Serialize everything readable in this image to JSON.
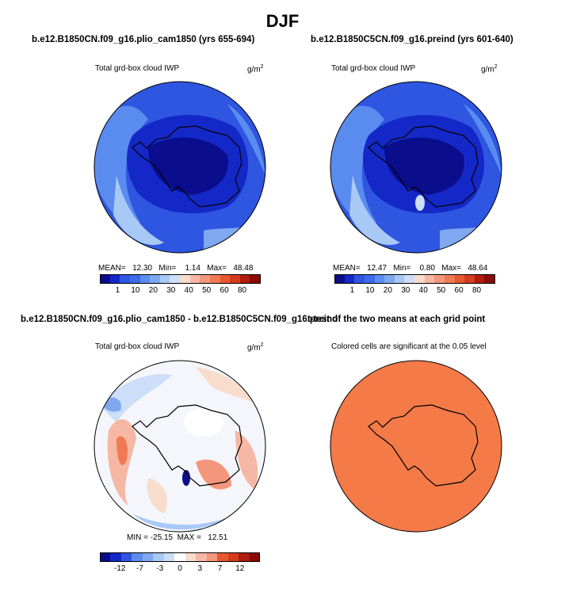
{
  "figure": {
    "title": "DJF",
    "panels": [
      {
        "title": "b.e12.B1850CN.f09_g16.plio_cam1850 (yrs 655-694)",
        "subtitle": "Total grd-box cloud IWP",
        "units": "g/m",
        "units_sup": "2",
        "stats": "MEAN=   12.30   Min=    1.14   Max=   48.48"
      },
      {
        "title": "b.e12.B1850C5CN.f09_g16.preind (yrs 601-640)",
        "subtitle": "Total grd-box cloud IWP",
        "units": "g/m",
        "units_sup": "2",
        "stats": "MEAN=   12.47   Min=    0.80   Max=   48.64"
      },
      {
        "title": "b.e12.B1850CN.f09_g16.plio_cam1850 - b.e12.B1850C5CN.f09_g16.preind",
        "subtitle": "Total grd-box cloud IWP",
        "units": "g/m",
        "units_sup": "2",
        "stats": "MIN = -25.15  MAX =   12.51"
      },
      {
        "title": "t-test of the two means at each grid point",
        "subtitle": "Colored cells are significant at the 0.05 level"
      }
    ],
    "colorbar_main": {
      "labels": [
        "1",
        "10",
        "20",
        "30",
        "40",
        "50",
        "60",
        "80"
      ],
      "colors": [
        "#0a0d8c",
        "#1428c8",
        "#2e56e0",
        "#3c6ae8",
        "#5a8cf0",
        "#7fa8f0",
        "#a8c8f6",
        "#ccdef8",
        "#f8dccc",
        "#f6b8a4",
        "#f4967c",
        "#f07a54",
        "#e8582e",
        "#d63a1c",
        "#b01c0e",
        "#8a0a06"
      ]
    },
    "colorbar_diff": {
      "labels": [
        "-12",
        "-7",
        "-3",
        "0",
        "3",
        "7",
        "12"
      ],
      "colors": [
        "#0a0d8c",
        "#1428c8",
        "#2e56e0",
        "#5a8cf0",
        "#7fa8f0",
        "#a8c8f6",
        "#ccdef8",
        "#ffffff",
        "#f8dccc",
        "#f6b8a4",
        "#f4967c",
        "#e8582e",
        "#d63a1c",
        "#b01c0e",
        "#8a0a06"
      ]
    }
  }
}
